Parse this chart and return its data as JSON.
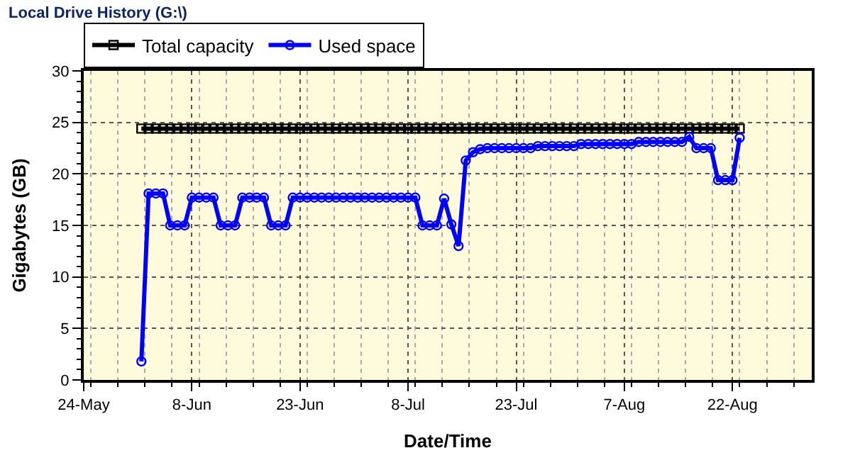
{
  "chart_data": {
    "type": "line",
    "title": "Local Drive History (G:\\)",
    "xlabel": "Date/Time",
    "ylabel": "Gigabytes (GB)",
    "x": [
      "--06-01",
      "--06-02",
      "--06-03",
      "--06-04",
      "--06-05",
      "--06-06",
      "--06-07",
      "--06-08",
      "--06-09",
      "--06-10",
      "--06-11",
      "--06-12",
      "--06-13",
      "--06-14",
      "--06-15",
      "--06-16",
      "--06-17",
      "--06-18",
      "--06-19",
      "--06-20",
      "--06-21",
      "--06-22",
      "--06-23",
      "--06-24",
      "--06-25",
      "--06-26",
      "--06-27",
      "--06-28",
      "--06-29",
      "--06-30",
      "--07-01",
      "--07-02",
      "--07-03",
      "--07-04",
      "--07-05",
      "--07-06",
      "--07-07",
      "--07-08",
      "--07-09",
      "--07-10",
      "--07-11",
      "--07-12",
      "--07-13",
      "--07-14",
      "--07-15",
      "--07-16",
      "--07-17",
      "--07-18",
      "--07-19",
      "--07-20",
      "--07-21",
      "--07-22",
      "--07-23",
      "--07-24",
      "--07-25",
      "--07-26",
      "--07-27",
      "--07-28",
      "--07-29",
      "--07-30",
      "--07-31",
      "--08-01",
      "--08-02",
      "--08-03",
      "--08-04",
      "--08-05",
      "--08-06",
      "--08-07",
      "--08-08",
      "--08-09",
      "--08-10",
      "--08-11",
      "--08-12",
      "--08-13",
      "--08-14",
      "--08-15",
      "--08-16",
      "--08-17",
      "--08-18",
      "--08-19",
      "--08-20",
      "--08-21",
      "--08-22",
      "--08-23"
    ],
    "series": [
      {
        "name": "Total capacity",
        "color": "#000000",
        "marker": "square",
        "values": [
          24.4,
          24.4,
          24.4,
          24.4,
          24.4,
          24.4,
          24.4,
          24.4,
          24.4,
          24.4,
          24.4,
          24.4,
          24.4,
          24.4,
          24.4,
          24.4,
          24.4,
          24.4,
          24.4,
          24.4,
          24.4,
          24.4,
          24.4,
          24.4,
          24.4,
          24.4,
          24.4,
          24.4,
          24.4,
          24.4,
          24.4,
          24.4,
          24.4,
          24.4,
          24.4,
          24.4,
          24.4,
          24.4,
          24.4,
          24.4,
          24.4,
          24.4,
          24.4,
          24.4,
          24.4,
          24.4,
          24.4,
          24.4,
          24.4,
          24.4,
          24.4,
          24.4,
          24.4,
          24.4,
          24.4,
          24.4,
          24.4,
          24.4,
          24.4,
          24.4,
          24.4,
          24.4,
          24.4,
          24.4,
          24.4,
          24.4,
          24.4,
          24.4,
          24.4,
          24.4,
          24.4,
          24.4,
          24.4,
          24.4,
          24.4,
          24.4,
          24.4,
          24.4,
          24.4,
          24.4,
          24.4,
          24.4,
          24.4,
          24.4
        ]
      },
      {
        "name": "Used space",
        "color": "#0000ff",
        "marker": "circle",
        "values": [
          1.8,
          18.1,
          18.1,
          18.1,
          15.0,
          15.0,
          15.0,
          17.7,
          17.7,
          17.7,
          17.7,
          15.0,
          15.0,
          15.0,
          17.7,
          17.7,
          17.7,
          17.7,
          15.0,
          15.0,
          15.0,
          17.7,
          17.7,
          17.7,
          17.7,
          17.7,
          17.7,
          17.7,
          17.7,
          17.7,
          17.7,
          17.7,
          17.7,
          17.7,
          17.7,
          17.7,
          17.7,
          17.7,
          17.7,
          15.0,
          15.0,
          15.0,
          17.6,
          15.1,
          13.0,
          21.3,
          22.1,
          22.4,
          22.5,
          22.5,
          22.5,
          22.5,
          22.5,
          22.5,
          22.5,
          22.7,
          22.7,
          22.7,
          22.7,
          22.7,
          22.7,
          22.9,
          22.9,
          22.9,
          22.9,
          22.9,
          22.9,
          22.9,
          22.9,
          23.1,
          23.1,
          23.1,
          23.1,
          23.1,
          23.1,
          23.1,
          23.6,
          22.5,
          22.5,
          22.5,
          19.4,
          19.4,
          19.4,
          23.5
        ]
      }
    ],
    "xlim": [
      "--05-24",
      "--09-02"
    ],
    "xticks": [
      {
        "value": "--05-24",
        "label": "24-May"
      },
      {
        "value": "--06-08",
        "label": "8-Jun"
      },
      {
        "value": "--06-23",
        "label": "23-Jun"
      },
      {
        "value": "--07-08",
        "label": "8-Jul"
      },
      {
        "value": "--07-23",
        "label": "23-Jul"
      },
      {
        "value": "--08-07",
        "label": "7-Aug"
      },
      {
        "value": "--08-22",
        "label": "22-Aug"
      }
    ],
    "ylim": [
      0,
      30
    ],
    "yticks": [
      0,
      5,
      10,
      15,
      20,
      25,
      30
    ],
    "grid": true,
    "legend": "top",
    "line_style": "solid"
  }
}
